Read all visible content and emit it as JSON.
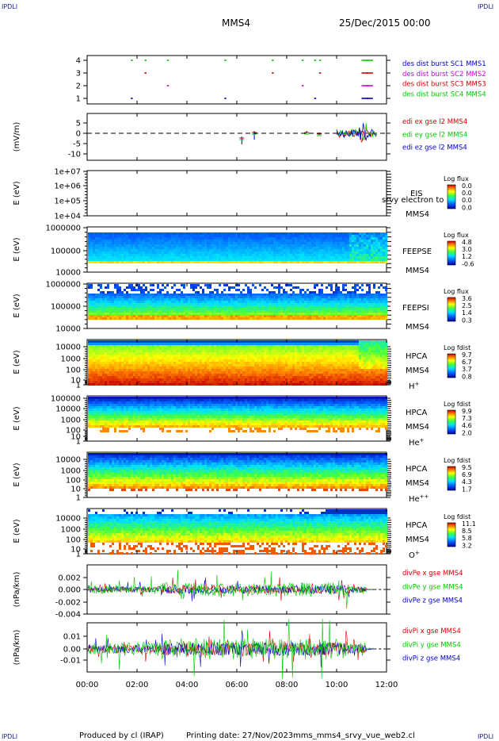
{
  "corner_labels": [
    "IPDLI",
    "IPDLI",
    "IPDLI",
    "IPDLI"
  ],
  "header": {
    "spacecraft": "MMS4",
    "date": "25/Dec/2015 00:00"
  },
  "footer": {
    "producer": "Produced by cl (IRAP)",
    "printing": "Printing date: 27/Nov/2023",
    "file": "mms_mms4_srvy_vue_web2.cl"
  },
  "colors": {
    "red": "#d40000",
    "green": "#00c800",
    "blue": "#0000c8",
    "magenta": "#d000d0",
    "text_blue": "#1a1aa0"
  },
  "chart_data": [
    {
      "type": "scatter",
      "name": "burst-availability",
      "x_ticks": [
        "00:00",
        "02:00",
        "04:00",
        "06:00",
        "08:00",
        "10:00",
        "12:00"
      ],
      "xlim_hours": [
        0,
        12
      ],
      "ylim": [
        0.5,
        4.5
      ],
      "y_ticks": [
        "4",
        "3",
        "2",
        "1"
      ],
      "ylabel": "",
      "legend": [
        {
          "text": "des dist burst SC1 MMS1",
          "color": "#0000c8"
        },
        {
          "text": "des dist burst SC2 MMS2",
          "color": "#d000d0"
        },
        {
          "text": "des dist burst SC3 MMS3",
          "color": "#d40000"
        },
        {
          "text": "des dist burst SC4 MMS4",
          "color": "#00c800"
        }
      ],
      "segments_hours": [
        1.75,
        2.3,
        3.2,
        5.5,
        7.4,
        8.6,
        9.1,
        9.3,
        11.0,
        11.2
      ]
    },
    {
      "type": "line",
      "name": "electric-field",
      "ylabel": "(mV/m)",
      "ylim": [
        -12,
        7
      ],
      "y_ticks": [
        "5",
        "0",
        "-5",
        "-10"
      ],
      "legend": [
        {
          "text": "edi ex gse l2 MMS4",
          "color": "#d40000"
        },
        {
          "text": "edi ey gse l2 MMS4",
          "color": "#00c800"
        },
        {
          "text": "edi ez gse l2 MMS4",
          "color": "#0000c8"
        }
      ]
    },
    {
      "type": "heatmap",
      "name": "eis",
      "ylabel": "E (eV)",
      "y_ticks": [
        "1e+07",
        "1e+06",
        "1e+05",
        "1e+04"
      ],
      "labels": [
        "EIS",
        "MMS4"
      ],
      "overlay_text": "srvy electron to",
      "colorbar": {
        "title": "Log flux",
        "ticks": [
          "0.0",
          "0.0",
          "0.0",
          "0.0"
        ]
      }
    },
    {
      "type": "heatmap",
      "name": "feepse",
      "ylabel": "E (eV)",
      "y_ticks": [
        "1000000",
        "100000",
        "10000"
      ],
      "labels": [
        "FEEPSE",
        "MMS4"
      ],
      "colorbar": {
        "title": "Log flux",
        "ticks": [
          "4.8",
          "3.0",
          "1.2",
          "-0.6"
        ]
      }
    },
    {
      "type": "heatmap",
      "name": "feepsi",
      "ylabel": "E (eV)",
      "y_ticks": [
        "1000000",
        "100000",
        "10000"
      ],
      "labels": [
        "FEEPSI",
        "MMS4"
      ],
      "colorbar": {
        "title": "Log flux",
        "ticks": [
          "3.6",
          "2.5",
          "1.4",
          "0.3"
        ]
      }
    },
    {
      "type": "heatmap",
      "name": "hpca-h",
      "ylabel": "E (eV)",
      "y_ticks": [
        "10000",
        "1000",
        "100",
        "10",
        "1"
      ],
      "labels": [
        "HPCA",
        "MMS4",
        "H"
      ],
      "ion_sup": "+",
      "colorbar": {
        "title": "Log fdist",
        "ticks": [
          "9.7",
          "6.7",
          "3.7",
          "0.8"
        ]
      }
    },
    {
      "type": "heatmap",
      "name": "hpca-he",
      "ylabel": "E (eV)",
      "y_ticks": [
        "100000",
        "10000",
        "1000",
        "100",
        "10",
        "1"
      ],
      "labels": [
        "HPCA",
        "MMS4",
        "He"
      ],
      "ion_sup": "+",
      "colorbar": {
        "title": "Log fdist",
        "ticks": [
          "9.9",
          "7.3",
          "4.6",
          "2.0"
        ]
      }
    },
    {
      "type": "heatmap",
      "name": "hpca-hepp",
      "ylabel": "E (eV)",
      "y_ticks": [
        "10000",
        "1000",
        "100",
        "10",
        "1"
      ],
      "labels": [
        "HPCA",
        "MMS4",
        "He"
      ],
      "ion_sup": "++",
      "colorbar": {
        "title": "Log fdist",
        "ticks": [
          "9.5",
          "6.9",
          "4.3",
          "1.7"
        ]
      }
    },
    {
      "type": "heatmap",
      "name": "hpca-o",
      "ylabel": "E (eV)",
      "y_ticks": [
        "10000",
        "1000",
        "100",
        "10",
        "1"
      ],
      "labels": [
        "HPCA",
        "MMS4",
        "O"
      ],
      "ion_sup": "+",
      "colorbar": {
        "title": "Log fdist",
        "ticks": [
          "11.1",
          "8.5",
          "5.8",
          "3.2"
        ]
      }
    },
    {
      "type": "line",
      "name": "div-pe",
      "ylabel": "(nPa/km)",
      "ylim": [
        -0.004,
        0.003
      ],
      "y_ticks": [
        "0.002",
        "0.000",
        "-0.002",
        "-0.004"
      ],
      "legend": [
        {
          "text": "divPe x gse MMS4",
          "color": "#d40000"
        },
        {
          "text": "divPe y gse MMS4",
          "color": "#00c800"
        },
        {
          "text": "divPe z gse MMS4",
          "color": "#0000c8"
        }
      ]
    },
    {
      "type": "line",
      "name": "div-pi",
      "ylabel": "(nPa/km)",
      "ylim": [
        -0.015,
        0.015
      ],
      "y_ticks": [
        "0.01",
        "0.00",
        "-0.01"
      ],
      "legend": [
        {
          "text": "divPi x gse MMS4",
          "color": "#d40000"
        },
        {
          "text": "divPi y gse MMS4",
          "color": "#00c800"
        },
        {
          "text": "divPi z gse MMS4",
          "color": "#0000c8"
        }
      ]
    }
  ]
}
